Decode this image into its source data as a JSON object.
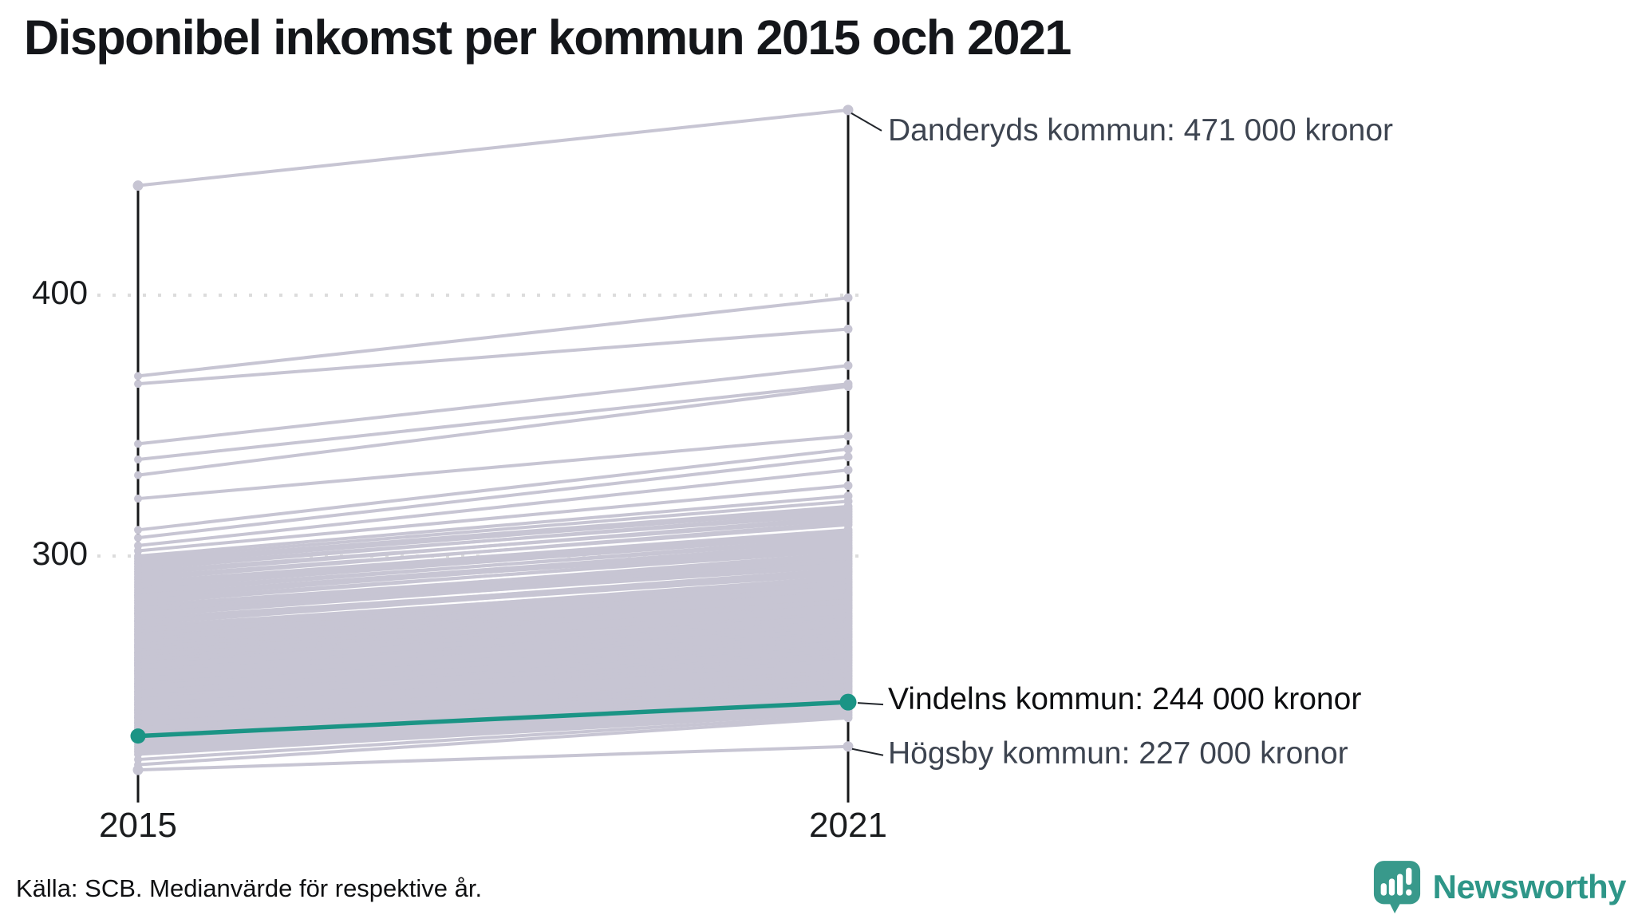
{
  "title": "Disponibel inkomst per kommun 2015 och 2021",
  "source_note": "Källa: SCB. Medianvärde för respektive år.",
  "branding": {
    "logo_text": "Newsworthy",
    "logo_text_color": "#2e9688",
    "logo_icon_color": "#38998b"
  },
  "colors": {
    "background_line": "#c7c5d3",
    "highlight_line": "#1b9485",
    "axis": "#17181a",
    "gridline": "#dcdcdc",
    "annotation_dark": "#3d4450",
    "annotation_black": "#0d0e10",
    "connector": "#22262c"
  },
  "chart_data": {
    "type": "line",
    "subtype": "slope-chart",
    "categories": [
      "2015",
      "2021"
    ],
    "unit": "tusen kronor (thousand SEK)",
    "ylim": [
      206,
      480
    ],
    "grid": "dotted horizontal at 300 and 400",
    "legend_position": "none (direct labels right of chart)",
    "yticks": [
      {
        "label": "400",
        "value": 400
      },
      {
        "label": "300",
        "value": 300
      }
    ],
    "xticks": [
      {
        "label": "2015"
      },
      {
        "label": "2021"
      }
    ],
    "highlight_series": {
      "name": "Vindelns kommun",
      "values": [
        231,
        244
      ],
      "color": "#1b9485"
    },
    "labeled_series": [
      {
        "name": "Danderyds kommun",
        "values": [
          442,
          471
        ]
      },
      {
        "name": "Högsby kommun",
        "values": [
          218,
          227
        ]
      }
    ],
    "annotations": [
      {
        "text": "Danderyds kommun: 471 000 kronor",
        "series": "Danderyds kommun",
        "value_2021": 471
      },
      {
        "text": "Vindelns kommun: 244 000 kronor",
        "series": "Vindelns kommun",
        "value_2021": 244
      },
      {
        "text": "Högsby kommun: 227 000 kronor",
        "series": "Högsby kommun",
        "value_2021": 227
      }
    ],
    "background_series": [
      [
        369,
        399
      ],
      [
        366,
        387
      ],
      [
        343,
        373
      ],
      [
        337,
        366
      ],
      [
        331,
        365
      ],
      [
        322,
        346
      ],
      [
        310,
        341
      ],
      [
        307,
        338
      ],
      [
        304,
        333
      ],
      [
        302,
        327
      ],
      [
        300,
        323
      ],
      [
        299,
        321
      ],
      [
        298,
        319
      ],
      [
        297,
        318
      ],
      [
        296,
        316
      ],
      [
        295,
        317
      ],
      [
        294,
        314
      ],
      [
        293,
        315
      ],
      [
        292,
        312
      ],
      [
        291,
        313
      ],
      [
        290,
        310
      ],
      [
        289,
        309
      ],
      [
        288,
        308
      ],
      [
        287,
        306
      ],
      [
        286,
        307
      ],
      [
        285,
        305
      ],
      [
        285,
        303
      ],
      [
        284,
        304
      ],
      [
        283,
        302
      ],
      [
        282,
        303
      ],
      [
        281,
        300
      ],
      [
        280,
        301
      ],
      [
        280,
        299
      ],
      [
        279,
        298
      ],
      [
        278,
        297
      ],
      [
        278,
        296
      ],
      [
        277,
        297
      ],
      [
        276,
        294
      ],
      [
        275,
        295
      ],
      [
        275,
        293
      ],
      [
        274,
        294
      ],
      [
        273,
        291
      ],
      [
        272,
        292
      ],
      [
        272,
        290
      ],
      [
        271,
        289
      ],
      [
        270,
        290
      ],
      [
        270,
        288
      ],
      [
        269,
        287
      ],
      [
        268,
        288
      ],
      [
        268,
        286
      ],
      [
        267,
        285
      ],
      [
        266,
        286
      ],
      [
        266,
        284
      ],
      [
        265,
        285
      ],
      [
        265,
        283
      ],
      [
        264,
        282
      ],
      [
        263,
        283
      ],
      [
        263,
        281
      ],
      [
        262,
        280
      ],
      [
        261,
        281
      ],
      [
        261,
        279
      ],
      [
        260,
        280
      ],
      [
        260,
        278
      ],
      [
        259,
        277
      ],
      [
        259,
        276
      ],
      [
        258,
        277
      ],
      [
        258,
        275
      ],
      [
        257,
        274
      ],
      [
        256,
        275
      ],
      [
        256,
        273
      ],
      [
        255,
        274
      ],
      [
        255,
        272
      ],
      [
        254,
        271
      ],
      [
        253,
        272
      ],
      [
        253,
        270
      ],
      [
        252,
        269
      ],
      [
        251,
        270
      ],
      [
        251,
        268
      ],
      [
        250,
        269
      ],
      [
        250,
        267
      ],
      [
        249,
        266
      ],
      [
        248,
        267
      ],
      [
        248,
        265
      ],
      [
        247,
        264
      ],
      [
        246,
        265
      ],
      [
        246,
        263
      ],
      [
        245,
        264
      ],
      [
        245,
        262
      ],
      [
        244,
        261
      ],
      [
        243,
        262
      ],
      [
        243,
        260
      ],
      [
        242,
        259
      ],
      [
        241,
        260
      ],
      [
        241,
        258
      ],
      [
        240,
        257
      ],
      [
        240,
        256
      ],
      [
        239,
        255
      ],
      [
        238,
        256
      ],
      [
        238,
        254
      ],
      [
        237,
        253
      ],
      [
        236,
        254
      ],
      [
        236,
        252
      ],
      [
        235,
        251
      ],
      [
        234,
        252
      ],
      [
        234,
        250
      ],
      [
        233,
        249
      ],
      [
        232,
        250
      ],
      [
        232,
        248
      ],
      [
        231,
        247
      ],
      [
        230,
        248
      ],
      [
        230,
        246
      ],
      [
        229,
        245
      ],
      [
        228,
        244
      ],
      [
        227,
        243
      ],
      [
        226,
        242
      ],
      [
        225,
        241
      ],
      [
        224,
        240
      ],
      [
        222,
        239
      ],
      [
        220,
        238
      ]
    ]
  }
}
